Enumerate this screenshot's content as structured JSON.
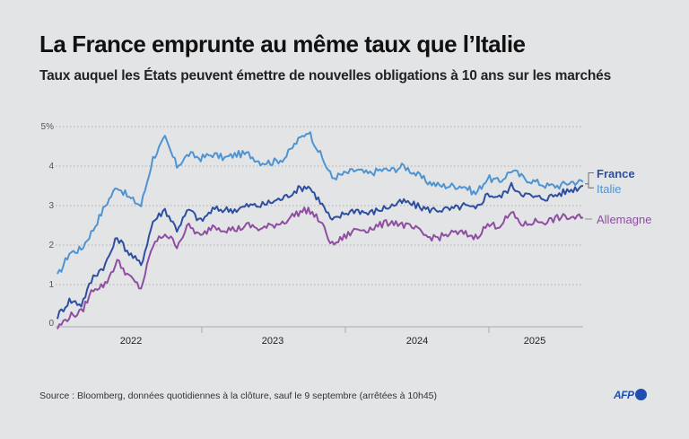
{
  "title": "La France emprunte au même taux que l’Italie",
  "subtitle": "Taux auquel les États peuvent émettre de nouvelles obligations à 10 ans sur les marchés",
  "source": "Source : Bloomberg, données quotidiennes à la clôture, sauf le 9 septembre (arrêtées à 10h45)",
  "logo": "AFP",
  "chart_data": {
    "type": "line",
    "title": "La France emprunte au même taux que l’Italie",
    "subtitle": "Taux auquel les États peuvent émettre de nouvelles obligations à 10 ans sur les marchés",
    "xlabel": "",
    "ylabel": "",
    "ylim": [
      0,
      5
    ],
    "yticks": [
      0,
      1,
      2,
      3,
      4,
      5
    ],
    "ytick_labels": [
      "0",
      "1",
      "2",
      "3",
      "4",
      "5%"
    ],
    "xtick_labels": [
      "2022",
      "2023",
      "2024",
      "2025"
    ],
    "xlim": [
      "2022-01",
      "2025-09"
    ],
    "grid": true,
    "legend": "right, inline labels",
    "x": [
      "2022-01",
      "2022-02",
      "2022-03",
      "2022-04",
      "2022-05",
      "2022-06",
      "2022-07",
      "2022-08",
      "2022-09",
      "2022-10",
      "2022-11",
      "2022-12",
      "2023-01",
      "2023-02",
      "2023-03",
      "2023-04",
      "2023-05",
      "2023-06",
      "2023-07",
      "2023-08",
      "2023-09",
      "2023-10",
      "2023-11",
      "2023-12",
      "2024-01",
      "2024-02",
      "2024-03",
      "2024-04",
      "2024-05",
      "2024-06",
      "2024-07",
      "2024-08",
      "2024-09",
      "2024-10",
      "2024-11",
      "2024-12",
      "2025-01",
      "2025-02",
      "2025-03",
      "2025-04",
      "2025-05",
      "2025-06",
      "2025-07",
      "2025-08",
      "2025-09"
    ],
    "series": [
      {
        "name": "Italie",
        "color": "#4f94d0",
        "values": [
          1.2,
          1.8,
          1.9,
          2.4,
          3.0,
          3.5,
          3.2,
          3.0,
          4.2,
          4.7,
          4.0,
          4.3,
          4.2,
          4.3,
          4.2,
          4.3,
          4.3,
          4.1,
          4.1,
          4.2,
          4.6,
          4.9,
          4.3,
          3.7,
          3.8,
          3.9,
          3.8,
          3.9,
          3.9,
          4.0,
          3.8,
          3.6,
          3.5,
          3.5,
          3.5,
          3.3,
          3.7,
          3.6,
          3.9,
          3.7,
          3.6,
          3.5,
          3.5,
          3.6,
          3.6
        ]
      },
      {
        "name": "France",
        "color": "#2e4fa0",
        "values": [
          0.2,
          0.6,
          0.5,
          1.2,
          1.5,
          2.2,
          1.8,
          1.5,
          2.6,
          2.9,
          2.4,
          2.9,
          2.6,
          2.9,
          2.9,
          2.9,
          3.0,
          3.0,
          3.1,
          3.2,
          3.4,
          3.5,
          3.1,
          2.6,
          2.8,
          2.9,
          2.8,
          2.9,
          3.0,
          3.1,
          3.0,
          2.9,
          2.9,
          2.9,
          3.0,
          2.9,
          3.3,
          3.2,
          3.5,
          3.3,
          3.2,
          3.2,
          3.3,
          3.4,
          3.5
        ]
      },
      {
        "name": "Allemagne",
        "color": "#8e4fa0",
        "values": [
          -0.1,
          0.2,
          0.3,
          0.9,
          1.0,
          1.6,
          1.2,
          0.9,
          2.0,
          2.3,
          2.0,
          2.5,
          2.2,
          2.5,
          2.4,
          2.4,
          2.5,
          2.4,
          2.5,
          2.6,
          2.8,
          2.9,
          2.6,
          2.0,
          2.2,
          2.4,
          2.4,
          2.5,
          2.6,
          2.5,
          2.4,
          2.2,
          2.2,
          2.3,
          2.3,
          2.2,
          2.5,
          2.5,
          2.8,
          2.5,
          2.6,
          2.6,
          2.7,
          2.7,
          2.7
        ]
      }
    ]
  }
}
